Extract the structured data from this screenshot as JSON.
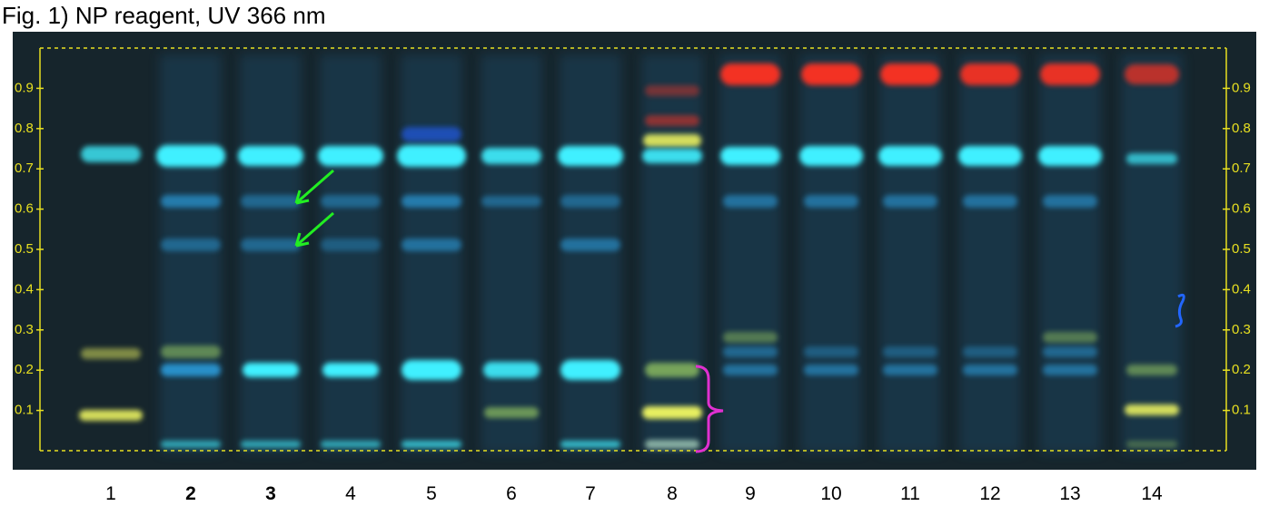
{
  "header": {
    "title": "Fig. 1) NP reagent, UV 366 nm"
  },
  "rf_axis": {
    "range": [
      0,
      1
    ],
    "ticks": [
      0.1,
      0.2,
      0.3,
      0.4,
      0.5,
      0.6,
      0.7,
      0.8,
      0.9
    ]
  },
  "lanes": [
    {
      "label": "1",
      "bold": false
    },
    {
      "label": "2",
      "bold": true
    },
    {
      "label": "3",
      "bold": true
    },
    {
      "label": "4",
      "bold": false
    },
    {
      "label": "5",
      "bold": false
    },
    {
      "label": "6",
      "bold": false
    },
    {
      "label": "7",
      "bold": false
    },
    {
      "label": "8",
      "bold": false
    },
    {
      "label": "9",
      "bold": false
    },
    {
      "label": "10",
      "bold": false
    },
    {
      "label": "11",
      "bold": false
    },
    {
      "label": "12",
      "bold": false
    },
    {
      "label": "13",
      "bold": false
    },
    {
      "label": "14",
      "bold": false
    }
  ]
}
